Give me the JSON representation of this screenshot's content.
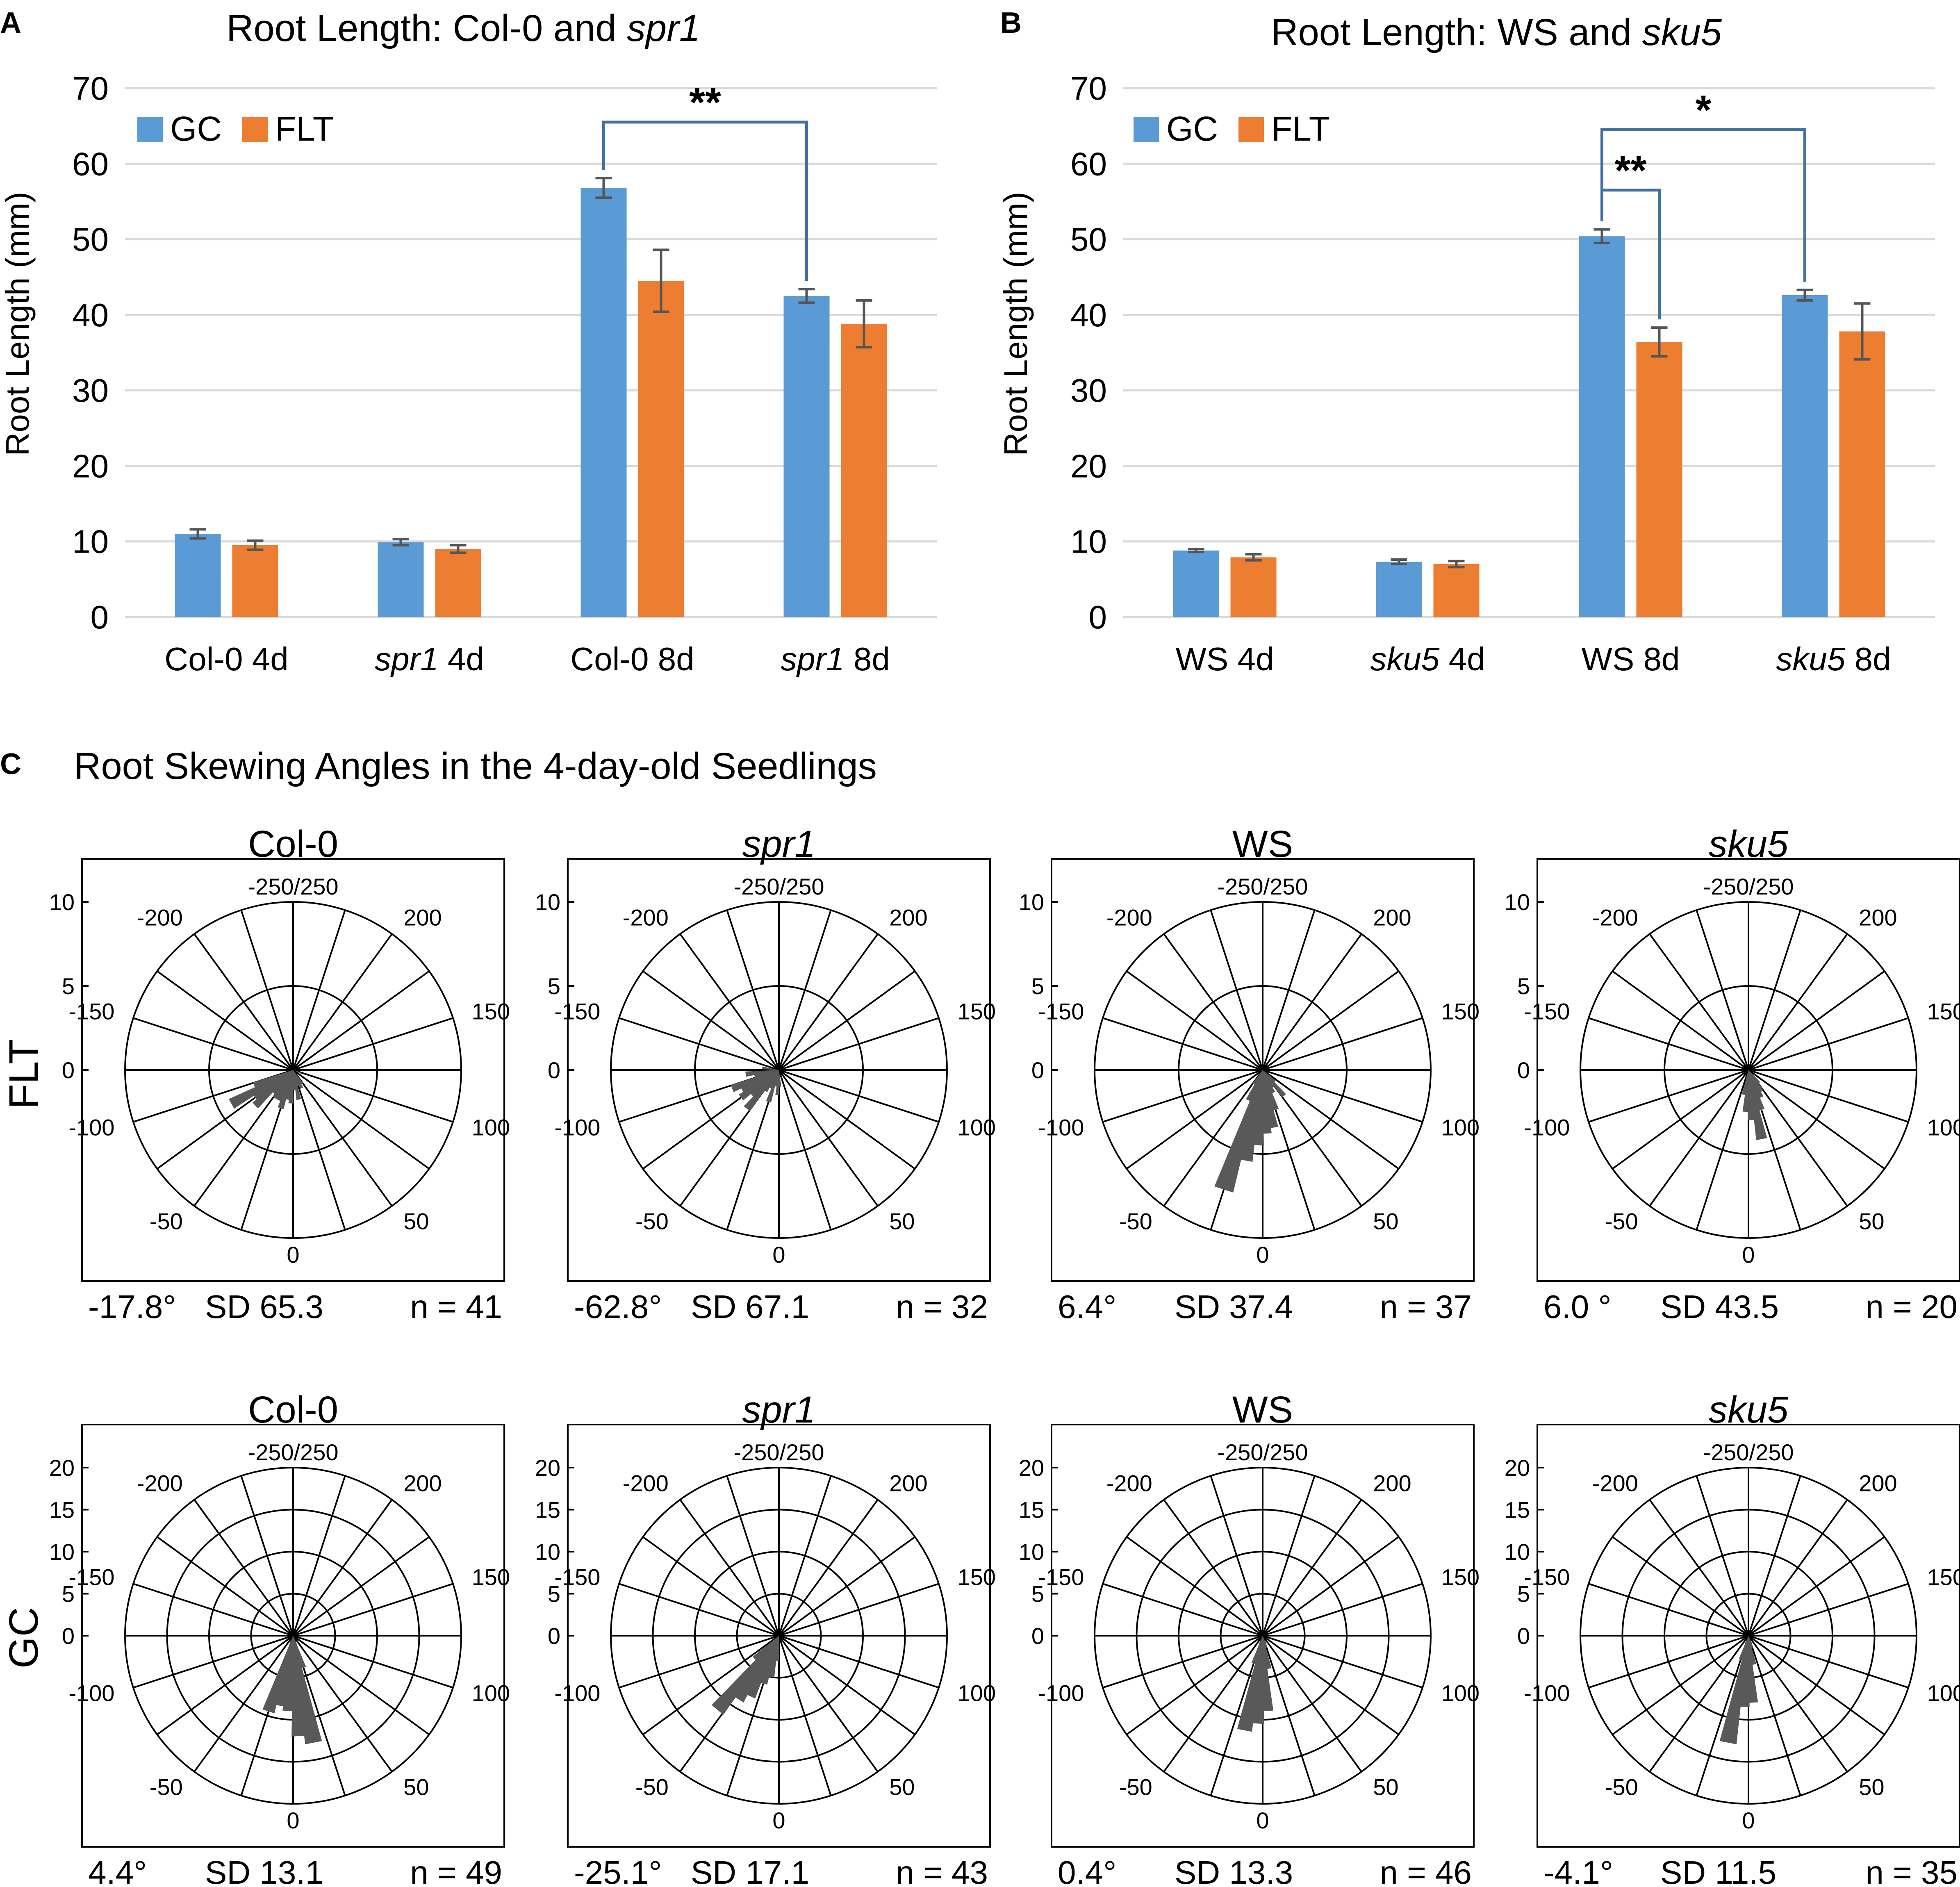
{
  "panels": {
    "A": {
      "letter": "A",
      "title_prefix": "Root Length: Col-0 and ",
      "title_italic": "spr1",
      "ylabel": "Root Length (mm)",
      "legend": [
        "GC",
        "FLT"
      ],
      "significance": "**"
    },
    "B": {
      "letter": "B",
      "title_prefix": "Root Length: WS and ",
      "title_italic": "sku5",
      "ylabel": "Root Length (mm)",
      "legend": [
        "GC",
        "FLT"
      ],
      "significance_outer": "*",
      "significance_inner": "**"
    },
    "C": {
      "letter": "C",
      "title": "Root Skewing Angles in the 4-day-old Seedlings",
      "row_labels": [
        "FLT",
        "GC"
      ]
    }
  },
  "chart_data": [
    {
      "id": "A",
      "type": "bar",
      "title": "Root Length: Col-0 and spr1",
      "ylabel": "Root Length (mm)",
      "xlabel": "",
      "ylim": [
        0,
        70
      ],
      "yticks": [
        0,
        10,
        20,
        30,
        40,
        50,
        60,
        70
      ],
      "grid": true,
      "legend_position": "top-left",
      "categories": [
        {
          "prefix": "Col-0 4d",
          "italic": "",
          "suffix": ""
        },
        {
          "prefix": "",
          "italic": "spr1",
          "suffix": " 4d"
        },
        {
          "prefix": "Col-0 8d",
          "italic": "",
          "suffix": ""
        },
        {
          "prefix": "",
          "italic": "spr1",
          "suffix": " 8d"
        }
      ],
      "series": [
        {
          "name": "GC",
          "color": "#5b9bd5",
          "values": [
            11.0,
            9.9,
            56.8,
            42.5
          ],
          "errors": [
            0.6,
            0.4,
            1.3,
            0.9
          ]
        },
        {
          "name": "FLT",
          "color": "#ed7d31",
          "values": [
            9.5,
            9.0,
            44.5,
            38.8
          ],
          "errors": [
            0.6,
            0.5,
            4.1,
            3.1
          ]
        }
      ],
      "brackets": [
        {
          "from": {
            "category": 2,
            "series": 0
          },
          "to": {
            "category": 3,
            "series": 0
          },
          "top": 65.5,
          "label": "**"
        }
      ]
    },
    {
      "id": "B",
      "type": "bar",
      "title": "Root Length: WS and sku5",
      "ylabel": "Root Length (mm)",
      "xlabel": "",
      "ylim": [
        0,
        70
      ],
      "yticks": [
        0,
        10,
        20,
        30,
        40,
        50,
        60,
        70
      ],
      "grid": true,
      "legend_position": "top-left",
      "categories": [
        {
          "prefix": "WS 4d",
          "italic": "",
          "suffix": ""
        },
        {
          "prefix": "",
          "italic": "sku5",
          "suffix": " 4d"
        },
        {
          "prefix": "WS 8d",
          "italic": "",
          "suffix": ""
        },
        {
          "prefix": "",
          "italic": "sku5",
          "suffix": " 8d"
        }
      ],
      "series": [
        {
          "name": "GC",
          "color": "#5b9bd5",
          "values": [
            8.8,
            7.3,
            50.4,
            42.6
          ],
          "errors": [
            0.2,
            0.3,
            0.9,
            0.7
          ]
        },
        {
          "name": "FLT",
          "color": "#ed7d31",
          "values": [
            7.9,
            7.0,
            36.4,
            37.8
          ],
          "errors": [
            0.4,
            0.4,
            1.9,
            3.7
          ]
        }
      ],
      "brackets": [
        {
          "from": {
            "category": 2,
            "series": 0
          },
          "to": {
            "category": 3,
            "series": 0
          },
          "top": 64.5,
          "label": "*"
        },
        {
          "from": {
            "category": 2,
            "series": 0
          },
          "to": {
            "category": 2,
            "series": 1
          },
          "top": 56.5,
          "label": "**"
        }
      ]
    },
    {
      "id": "C",
      "type": "polar-histogram",
      "title": "Root Skewing Angles in the 4-day-old Seedlings",
      "angle_labels": [
        "-250/250",
        "200",
        "150",
        "100",
        "50",
        "0",
        "-50",
        "-100",
        "-150",
        "-200"
      ],
      "plots": [
        {
          "row": "FLT",
          "genotype": "Col-0",
          "italic": false,
          "rmax": 10,
          "radial_ticks": [
            10,
            5,
            0
          ],
          "mean": "-17.8°",
          "sd": "SD 65.3",
          "n": "n = 41",
          "bins": [
            [
              -95,
              2.5
            ],
            [
              -85,
              4.2
            ],
            [
              -75,
              2.8
            ],
            [
              -65,
              3.1
            ],
            [
              -55,
              1.8
            ],
            [
              -45,
              2.0
            ],
            [
              -35,
              2.0
            ],
            [
              -25,
              2.4
            ],
            [
              -15,
              1.8
            ],
            [
              -5,
              2.0
            ],
            [
              5,
              1.2
            ],
            [
              15,
              1.8
            ],
            [
              25,
              1.0
            ],
            [
              35,
              1.2
            ],
            [
              45,
              1.0
            ],
            [
              95,
              0.5
            ]
          ]
        },
        {
          "row": "FLT",
          "genotype": "spr1",
          "italic": true,
          "rmax": 10,
          "radial_ticks": [
            10,
            5,
            0
          ],
          "mean": "-62.8°",
          "sd": "SD 67.1",
          "n": "n = 32",
          "bins": [
            [
              -135,
              1.0
            ],
            [
              -115,
              2.0
            ],
            [
              -105,
              1.5
            ],
            [
              -95,
              3.0
            ],
            [
              -85,
              2.5
            ],
            [
              -75,
              2.8
            ],
            [
              -65,
              2.2
            ],
            [
              -55,
              3.0
            ],
            [
              -45,
              1.5
            ],
            [
              -35,
              1.2
            ],
            [
              -25,
              2.0
            ],
            [
              -15,
              1.0
            ],
            [
              -5,
              1.5
            ],
            [
              5,
              1.0
            ]
          ]
        },
        {
          "row": "FLT",
          "genotype": "WS",
          "italic": false,
          "rmax": 10,
          "radial_ticks": [
            10,
            5,
            0
          ],
          "mean": "6.4°",
          "sd": "SD 37.4",
          "n": "n = 37",
          "bins": [
            [
              -45,
              1.0
            ],
            [
              -35,
              2.0
            ],
            [
              -25,
              7.5
            ],
            [
              -15,
              5.5
            ],
            [
              -5,
              4.5
            ],
            [
              5,
              3.8
            ],
            [
              15,
              3.5
            ],
            [
              25,
              2.5
            ],
            [
              35,
              1.5
            ],
            [
              45,
              1.2
            ],
            [
              55,
              2.0
            ],
            [
              65,
              1.0
            ]
          ]
        },
        {
          "row": "FLT",
          "genotype": "sku5",
          "italic": true,
          "rmax": 10,
          "radial_ticks": [
            10,
            5,
            0
          ],
          "mean": "6.0 °",
          "sd": "SD 43.5",
          "n": "n = 20",
          "bins": [
            [
              -15,
              1.5
            ],
            [
              -5,
              2.5
            ],
            [
              5,
              3.0
            ],
            [
              15,
              4.2
            ],
            [
              25,
              2.5
            ],
            [
              35,
              1.8
            ],
            [
              45,
              1.5
            ],
            [
              55,
              1.0
            ]
          ]
        },
        {
          "row": "GC",
          "genotype": "Col-0",
          "italic": false,
          "rmax": 20,
          "radial_ticks": [
            20,
            15,
            10,
            5,
            0
          ],
          "mean": "4.4°",
          "sd": "SD 13.1",
          "n": "n = 49",
          "bins": [
            [
              -25,
              9.5
            ],
            [
              -15,
              8.5
            ],
            [
              -5,
              9.0
            ],
            [
              5,
              12.0
            ],
            [
              15,
              13.0
            ],
            [
              25,
              4.0
            ]
          ]
        },
        {
          "row": "GC",
          "genotype": "spr1",
          "italic": true,
          "rmax": 20,
          "radial_ticks": [
            20,
            15,
            10,
            5,
            0
          ],
          "mean": "-25.1°",
          "sd": "SD 17.1",
          "n": "n = 43",
          "bins": [
            [
              -65,
              4.0
            ],
            [
              -55,
              11.5
            ],
            [
              -45,
              9.0
            ],
            [
              -35,
              8.0
            ],
            [
              -25,
              6.0
            ],
            [
              -15,
              5.0
            ],
            [
              -5,
              3.0
            ]
          ]
        },
        {
          "row": "GC",
          "genotype": "WS",
          "italic": false,
          "rmax": 20,
          "radial_ticks": [
            20,
            15,
            10,
            5,
            0
          ],
          "mean": "0.4°",
          "sd": "SD 13.3",
          "n": "n = 46",
          "bins": [
            [
              -25,
              3.5
            ],
            [
              -15,
              11.5
            ],
            [
              -5,
              10.5
            ],
            [
              5,
              9.0
            ],
            [
              15,
              4.0
            ],
            [
              25,
              1.5
            ]
          ]
        },
        {
          "row": "GC",
          "genotype": "sku5",
          "italic": true,
          "rmax": 20,
          "radial_ticks": [
            20,
            15,
            10,
            5,
            0
          ],
          "mean": "-4.1°",
          "sd": "SD 11.5",
          "n": "n = 35",
          "bins": [
            [
              -25,
              3.0
            ],
            [
              -15,
              13.0
            ],
            [
              -5,
              8.5
            ],
            [
              5,
              8.0
            ],
            [
              15,
              3.5
            ],
            [
              25,
              1.5
            ]
          ]
        }
      ]
    }
  ]
}
